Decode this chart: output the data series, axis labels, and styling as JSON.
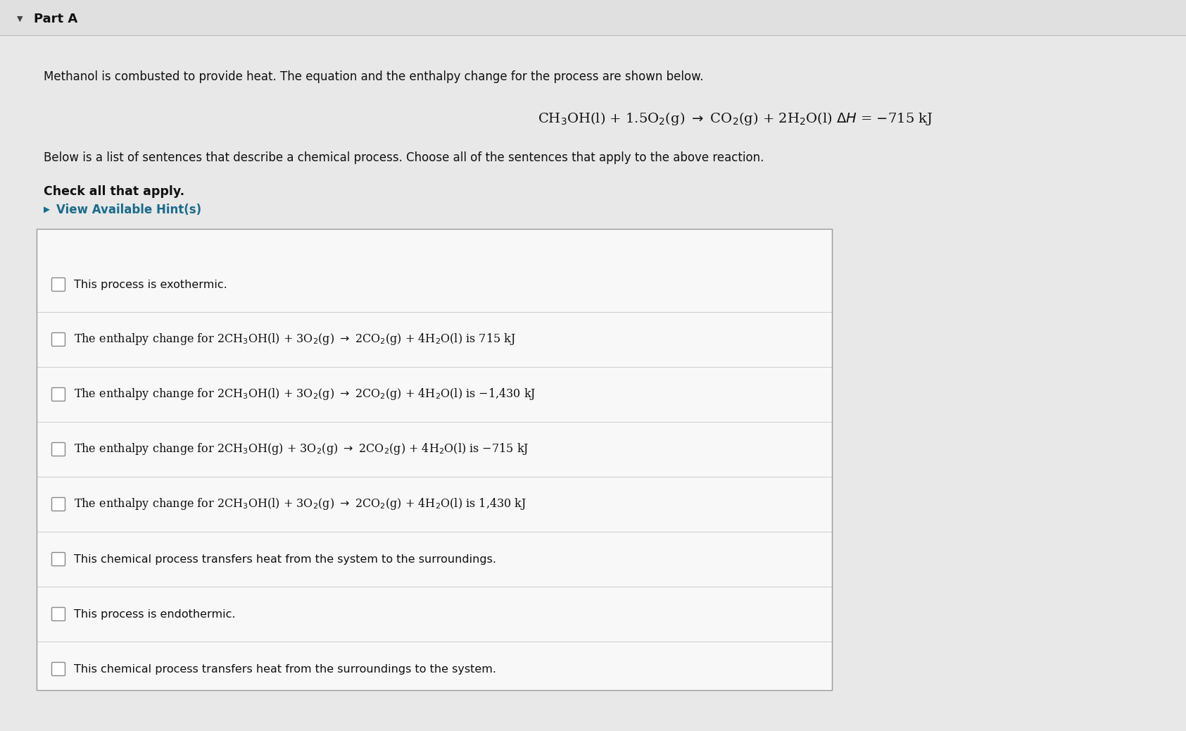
{
  "page_bg": "#d4d4d4",
  "header_bg": "#e0e0e0",
  "content_bg": "#e8e8e8",
  "box_bg": "#f8f8f8",
  "box_border": "#999999",
  "divider_color": "#cccccc",
  "text_color": "#111111",
  "hint_color": "#1a6b8a",
  "part_a_text": "Part A",
  "intro_text": "Methanol is combusted to provide heat. The equation and the enthalpy change for the process are shown below.",
  "equation_latex": "CH$_3$OH(l) + 1.5O$_2$(g) $\\rightarrow$ CO$_2$(g) + 2H$_2$O(l) $\\Delta H$ = $-$715 kJ",
  "below_text": "Below is a list of sentences that describe a chemical process. Choose all of the sentences that apply to the above reaction.",
  "check_text": "Check all that apply.",
  "hint_text": "View Available Hint(s)",
  "options_plain": [
    "This process is exothermic.",
    "",
    "",
    "",
    "",
    "This chemical process transfers heat from the system to the surroundings.",
    "This process is endothermic.",
    "This chemical process transfers heat from the surroundings to the system."
  ],
  "options_latex": [
    "",
    "The enthalpy change for 2CH$_3$OH(l) + 3O$_2$(g) $\\rightarrow$ 2CO$_2$(g) + 4H$_2$O(l) is 715 kJ",
    "The enthalpy change for 2CH$_3$OH(l) + 3O$_2$(g) $\\rightarrow$ 2CO$_2$(g) + 4H$_2$O(l) is $-$1,430 kJ",
    "The enthalpy change for 2CH$_3$OH(g) + 3O$_2$(g) $\\rightarrow$ 2CO$_2$(g) + 4H$_2$O(l) is $-$715 kJ",
    "The enthalpy change for 2CH$_3$OH(l) + 3O$_2$(g) $\\rightarrow$ 2CO$_2$(g) + 4H$_2$O(l) is 1,430 kJ",
    "",
    "",
    ""
  ],
  "option_prefix": "The enthalpy change for ",
  "fig_width": 16.85,
  "fig_height": 10.38,
  "dpi": 100
}
